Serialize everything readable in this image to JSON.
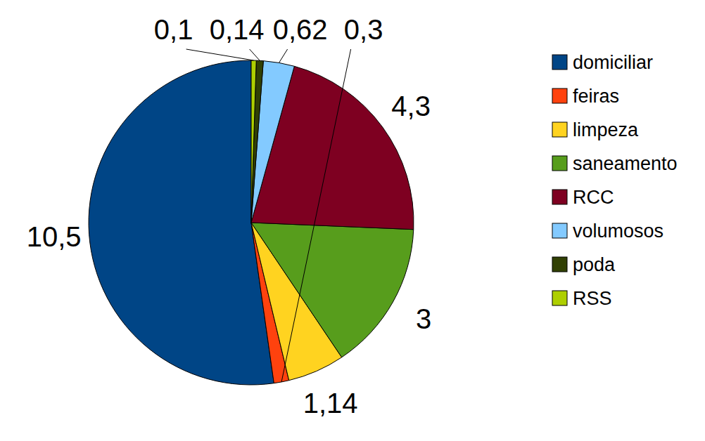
{
  "chart_data": {
    "type": "pie",
    "categories": [
      "domiciliar",
      "feiras",
      "limpeza",
      "saneamento",
      "RCC",
      "volumosos",
      "poda",
      "RSS"
    ],
    "values": [
      10.5,
      0.3,
      1.14,
      3,
      4.3,
      0.62,
      0.14,
      0.1
    ],
    "value_labels": [
      "10,5",
      "0,3",
      "1,14",
      "3",
      "4,3",
      "0,62",
      "0,14",
      "0,1"
    ],
    "colors": [
      "#004586",
      "#ff420e",
      "#ffd320",
      "#579d1c",
      "#7e0021",
      "#83caff",
      "#314004",
      "#aecf00"
    ],
    "data_labels": true,
    "legend": "right"
  }
}
